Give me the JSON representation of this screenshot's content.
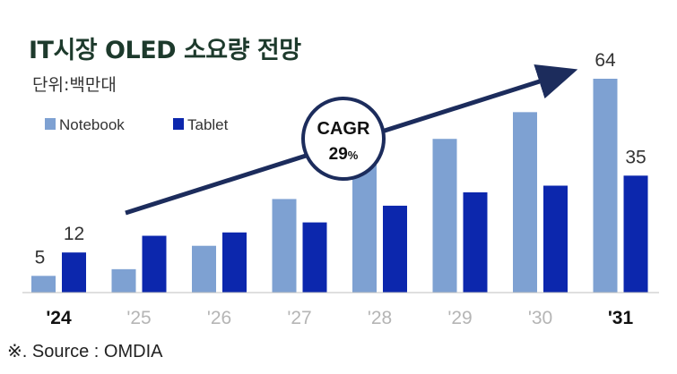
{
  "title": "IT시장 OLED 소요량 전망",
  "unit_label": "단위:백만대",
  "source": "※. Source : OMDIA",
  "annotation": {
    "label": "CAGR",
    "value": "29",
    "suffix": "%"
  },
  "colors": {
    "notebook": "#7ea1d2",
    "tablet": "#0c27ad",
    "arrow": "#1c2c5c",
    "axis": "#bfbfbf",
    "text": "#333333",
    "muted": "#b5b5b5"
  },
  "chart_data": {
    "type": "bar",
    "categories": [
      "'24",
      "'25",
      "'26",
      "'27",
      "'28",
      "'29",
      "'30",
      "'31"
    ],
    "highlight_categories": [
      "'24",
      "'31"
    ],
    "series": [
      {
        "name": "Notebook",
        "values": [
          5,
          7,
          14,
          28,
          41,
          46,
          54,
          64
        ],
        "labeled_points": [
          0,
          7
        ]
      },
      {
        "name": "Tablet",
        "values": [
          12,
          17,
          18,
          21,
          26,
          30,
          32,
          35
        ],
        "labeled_points": [
          0,
          7
        ]
      }
    ],
    "ylim": [
      0,
      64
    ],
    "legend": "top-left",
    "grid": false
  }
}
